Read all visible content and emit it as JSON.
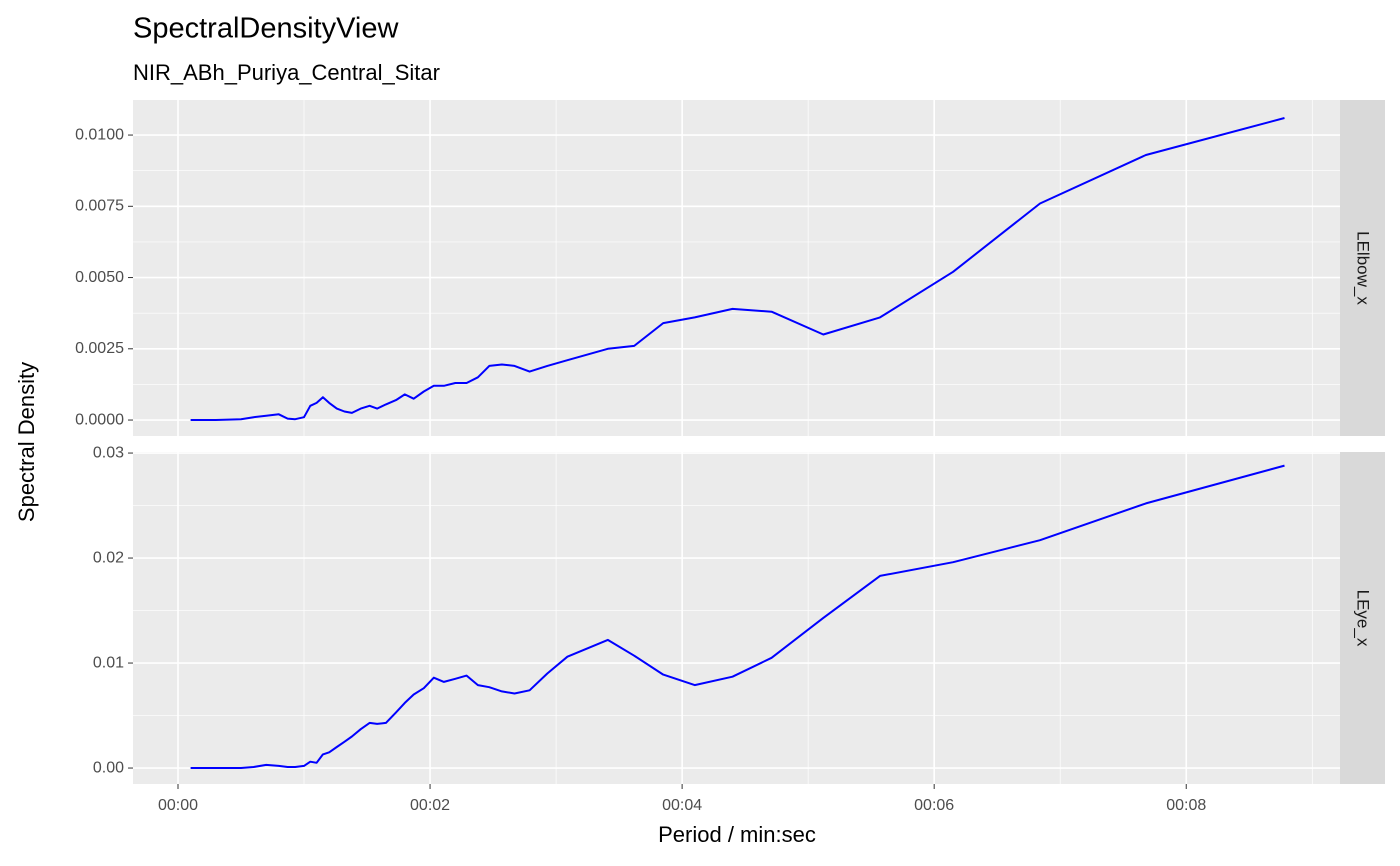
{
  "title": "SpectralDensityView",
  "subtitle": "NIR_ABh_Puriya_Central_Sitar",
  "x_label": "Period / min:sec",
  "y_label": "Spectral Density",
  "chart_data": [
    {
      "type": "line",
      "facet": "LElbow_x",
      "color": "#0000ff",
      "grid": true,
      "x": [
        0.1,
        0.3,
        0.5,
        0.6,
        0.7,
        0.8,
        0.87,
        0.93,
        1.0,
        1.05,
        1.1,
        1.15,
        1.2,
        1.26,
        1.32,
        1.38,
        1.45,
        1.52,
        1.58,
        1.65,
        1.73,
        1.8,
        1.87,
        1.95,
        2.03,
        2.11,
        2.2,
        2.29,
        2.38,
        2.47,
        2.57,
        2.67,
        2.79,
        2.93,
        3.09,
        3.41,
        3.62,
        3.85,
        4.1,
        4.4,
        4.71,
        5.12,
        5.57,
        6.15,
        6.84,
        7.68,
        8.78
      ],
      "values": [
        0,
        0,
        3e-05,
        0.0001,
        0.00015,
        0.0002,
        5e-05,
        3e-05,
        0.0001,
        0.0005,
        0.0006,
        0.0008,
        0.0006,
        0.0004,
        0.0003,
        0.00025,
        0.0004,
        0.0005,
        0.0004,
        0.00055,
        0.0007,
        0.0009,
        0.00075,
        0.001,
        0.0012,
        0.0012,
        0.0013,
        0.0013,
        0.0015,
        0.0019,
        0.00195,
        0.0019,
        0.0017,
        0.0019,
        0.0021,
        0.0025,
        0.0026,
        0.0034,
        0.0036,
        0.0039,
        0.0038,
        0.003,
        0.0036,
        0.0052,
        0.0076,
        0.0093,
        0.0106
      ],
      "xlim": [
        -0.357,
        9.22
      ],
      "xticks": [
        {
          "value": 0,
          "label": "00:00"
        },
        {
          "value": 2,
          "label": "00:02"
        },
        {
          "value": 4,
          "label": "00:04"
        },
        {
          "value": 6,
          "label": "00:06"
        },
        {
          "value": 8,
          "label": "00:08"
        }
      ],
      "ylim": [
        -0.00056,
        0.01123
      ],
      "yticks": [
        {
          "value": 0,
          "label": "0.0000"
        },
        {
          "value": 0.0025,
          "label": "0.0025"
        },
        {
          "value": 0.005,
          "label": "0.0050"
        },
        {
          "value": 0.0075,
          "label": "0.0075"
        },
        {
          "value": 0.01,
          "label": "0.0100"
        }
      ]
    },
    {
      "type": "line",
      "facet": "LEye_x",
      "color": "#0000ff",
      "grid": true,
      "x": [
        0.1,
        0.3,
        0.5,
        0.6,
        0.7,
        0.8,
        0.87,
        0.93,
        1.0,
        1.05,
        1.1,
        1.15,
        1.2,
        1.26,
        1.32,
        1.38,
        1.45,
        1.52,
        1.58,
        1.65,
        1.73,
        1.8,
        1.87,
        1.95,
        2.03,
        2.11,
        2.2,
        2.29,
        2.38,
        2.47,
        2.57,
        2.67,
        2.79,
        2.93,
        3.09,
        3.41,
        3.62,
        3.85,
        4.1,
        4.4,
        4.71,
        5.12,
        5.57,
        6.15,
        6.84,
        7.68,
        8.78
      ],
      "values": [
        0,
        0,
        0,
        0.0001,
        0.0003,
        0.0002,
        0.0001,
        0.0001,
        0.0002,
        0.0006,
        0.0005,
        0.0013,
        0.0015,
        0.002,
        0.0025,
        0.003,
        0.0037,
        0.0043,
        0.0042,
        0.0043,
        0.0053,
        0.0062,
        0.007,
        0.0076,
        0.0086,
        0.0082,
        0.0085,
        0.0088,
        0.0079,
        0.0077,
        0.0073,
        0.0071,
        0.0074,
        0.009,
        0.0106,
        0.0122,
        0.0107,
        0.0089,
        0.0079,
        0.0087,
        0.0105,
        0.0143,
        0.0183,
        0.0196,
        0.0217,
        0.0252,
        0.0288
      ],
      "xlim": [
        -0.357,
        9.22
      ],
      "xticks": [
        {
          "value": 0,
          "label": "00:00"
        },
        {
          "value": 2,
          "label": "00:02"
        },
        {
          "value": 4,
          "label": "00:04"
        },
        {
          "value": 6,
          "label": "00:06"
        },
        {
          "value": 8,
          "label": "00:08"
        }
      ],
      "ylim": [
        -0.00152,
        0.0301
      ],
      "yticks": [
        {
          "value": 0,
          "label": "0.00"
        },
        {
          "value": 0.01,
          "label": "0.01"
        },
        {
          "value": 0.02,
          "label": "0.02"
        },
        {
          "value": 0.03,
          "label": "0.03"
        }
      ]
    }
  ]
}
